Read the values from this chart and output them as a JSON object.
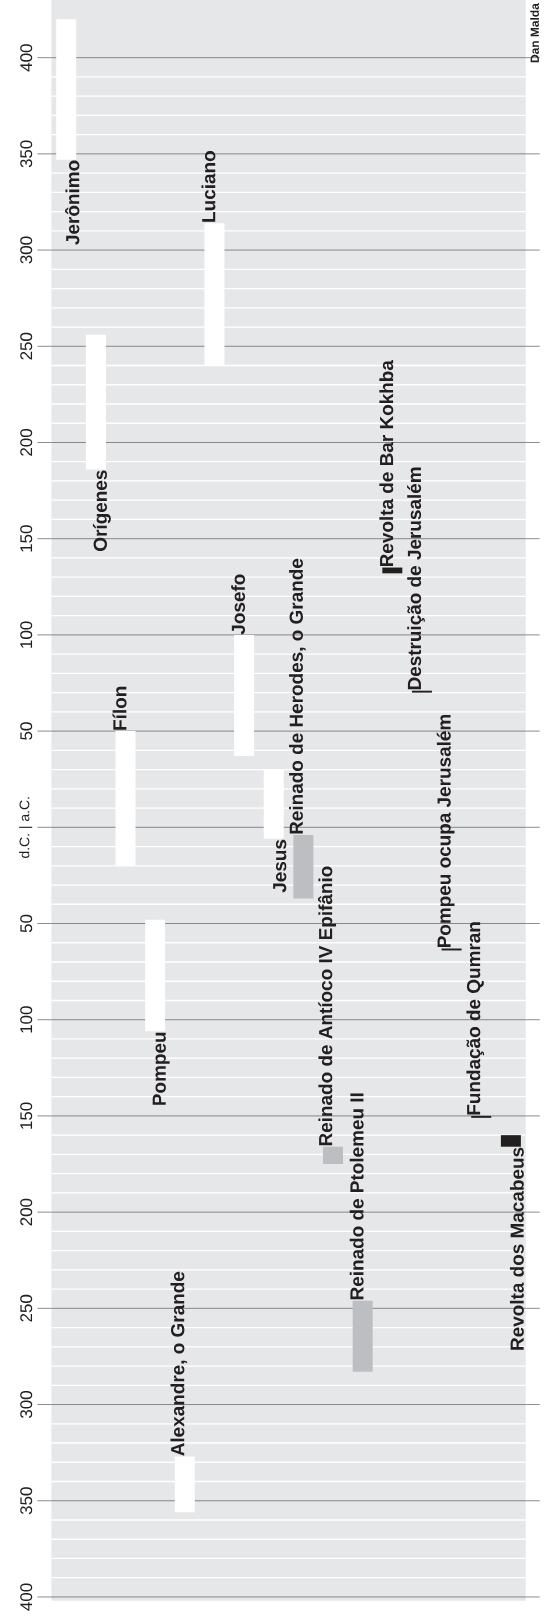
{
  "chart_data": {
    "type": "bar",
    "categories": [
      null,
      null,
      null,
      null,
      null,
      null,
      null,
      null,
      null,
      null,
      null,
      null,
      null,
      null,
      null,
      null
    ],
    "series": [
      {
        "name": "Jerônimo",
        "color": "#ffffff",
        "values": [
          73,
          null,
          null,
          null,
          null,
          null,
          null,
          null,
          null,
          null,
          null,
          null,
          null,
          null,
          null,
          null
        ],
        "base": [
          347,
          null,
          null,
          null,
          null,
          null,
          null,
          null,
          null,
          null,
          null,
          null,
          null,
          null,
          null,
          null
        ]
      },
      {
        "name": "Orígenes",
        "color": "#ffffff",
        "values": [
          null,
          70,
          null,
          null,
          null,
          null,
          null,
          null,
          null,
          null,
          null,
          null,
          null,
          null,
          null,
          null
        ],
        "base": [
          null,
          186,
          null,
          null,
          null,
          null,
          null,
          null,
          null,
          null,
          null,
          null,
          null,
          null,
          null,
          null
        ]
      },
      {
        "name": "Fílon",
        "color": "#ffffff",
        "values": [
          null,
          null,
          70,
          null,
          null,
          null,
          null,
          null,
          null,
          null,
          null,
          null,
          null,
          null,
          null,
          null
        ],
        "base": [
          null,
          null,
          -20,
          null,
          null,
          null,
          null,
          null,
          null,
          null,
          null,
          null,
          null,
          null,
          null,
          null
        ]
      },
      {
        "name": "Pompeu",
        "color": "#ffffff",
        "values": [
          null,
          null,
          null,
          58,
          null,
          null,
          null,
          null,
          null,
          null,
          null,
          null,
          null,
          null,
          null,
          null
        ],
        "base": [
          null,
          null,
          null,
          -106,
          null,
          null,
          null,
          null,
          null,
          null,
          null,
          null,
          null,
          null,
          null,
          null
        ]
      },
      {
        "name": "Alexandre, o Grande",
        "color": "#ffffff",
        "values": [
          null,
          null,
          null,
          null,
          29,
          null,
          null,
          null,
          null,
          null,
          null,
          null,
          null,
          null,
          null,
          null
        ],
        "base": [
          null,
          null,
          null,
          null,
          -356,
          null,
          null,
          null,
          null,
          null,
          null,
          null,
          null,
          null,
          null,
          null
        ]
      },
      {
        "name": "Luciano",
        "color": "#ffffff",
        "values": [
          null,
          null,
          null,
          null,
          null,
          74,
          null,
          null,
          null,
          null,
          null,
          null,
          null,
          null,
          null,
          null
        ],
        "base": [
          null,
          null,
          null,
          null,
          null,
          240,
          null,
          null,
          null,
          null,
          null,
          null,
          null,
          null,
          null,
          null
        ]
      },
      {
        "name": "Josefo",
        "color": "#ffffff",
        "values": [
          null,
          null,
          null,
          null,
          null,
          null,
          63,
          null,
          null,
          null,
          null,
          null,
          null,
          null,
          null,
          null
        ],
        "base": [
          null,
          null,
          null,
          null,
          null,
          null,
          37,
          null,
          null,
          null,
          null,
          null,
          null,
          null,
          null,
          null
        ]
      },
      {
        "name": "Jesus",
        "color": "#ffffff",
        "values": [
          null,
          null,
          null,
          null,
          null,
          null,
          null,
          36,
          null,
          null,
          null,
          null,
          null,
          null,
          null,
          null
        ],
        "base": [
          null,
          null,
          null,
          null,
          null,
          null,
          null,
          -6,
          null,
          null,
          null,
          null,
          null,
          null,
          null,
          null
        ]
      },
      {
        "name": "Reinado de Herodes, o Grande",
        "color": "#bcbec1",
        "values": [
          null,
          null,
          null,
          null,
          null,
          null,
          null,
          null,
          33,
          null,
          null,
          null,
          null,
          null,
          null,
          null
        ],
        "base": [
          null,
          null,
          null,
          null,
          null,
          null,
          null,
          null,
          -37,
          null,
          null,
          null,
          null,
          null,
          null,
          null
        ]
      },
      {
        "name": "Reinado de Antíoco IV Epifânio",
        "color": "#bcbec1",
        "values": [
          null,
          null,
          null,
          null,
          null,
          null,
          null,
          null,
          null,
          9,
          null,
          null,
          null,
          null,
          null,
          null
        ],
        "base": [
          null,
          null,
          null,
          null,
          null,
          null,
          null,
          null,
          null,
          -175,
          null,
          null,
          null,
          null,
          null,
          null
        ]
      },
      {
        "name": "Reinado de Ptolemeu II",
        "color": "#bcbec1",
        "values": [
          null,
          null,
          null,
          null,
          null,
          null,
          null,
          null,
          null,
          null,
          37,
          null,
          null,
          null,
          null,
          null
        ],
        "base": [
          null,
          null,
          null,
          null,
          null,
          null,
          null,
          null,
          null,
          null,
          -283,
          null,
          null,
          null,
          null,
          null
        ]
      },
      {
        "name": "Revolta de Bar Kokhba",
        "color": "#231f20",
        "values": [
          null,
          null,
          null,
          null,
          null,
          null,
          null,
          null,
          null,
          null,
          null,
          3,
          null,
          null,
          null,
          null
        ],
        "base": [
          null,
          null,
          null,
          null,
          null,
          null,
          null,
          null,
          null,
          null,
          null,
          132,
          null,
          null,
          null,
          null
        ]
      },
      {
        "name": "Destruição de Jerusalém",
        "color": "#231f20",
        "values": [
          null,
          null,
          null,
          null,
          null,
          null,
          null,
          null,
          null,
          null,
          null,
          null,
          1,
          null,
          null,
          null
        ],
        "base": [
          null,
          null,
          null,
          null,
          null,
          null,
          null,
          null,
          null,
          null,
          null,
          null,
          70,
          null,
          null,
          null
        ]
      },
      {
        "name": "Pompeu ocupa Jerusalém",
        "color": "#231f20",
        "values": [
          null,
          null,
          null,
          null,
          null,
          null,
          null,
          null,
          null,
          null,
          null,
          null,
          null,
          1,
          null,
          null
        ],
        "base": [
          null,
          null,
          null,
          null,
          null,
          null,
          null,
          null,
          null,
          null,
          null,
          null,
          null,
          -64,
          null,
          null
        ]
      },
      {
        "name": "Fundação de Qumran",
        "color": "#231f20",
        "values": [
          null,
          null,
          null,
          null,
          null,
          null,
          null,
          null,
          null,
          null,
          null,
          null,
          null,
          null,
          1,
          null
        ],
        "base": [
          null,
          null,
          null,
          null,
          null,
          null,
          null,
          null,
          null,
          null,
          null,
          null,
          null,
          null,
          -151,
          null
        ]
      },
      {
        "name": "Revolta dos Macabeus",
        "color": "#231f20",
        "values": [
          null,
          null,
          null,
          null,
          null,
          null,
          null,
          null,
          null,
          null,
          null,
          null,
          null,
          null,
          null,
          6
        ],
        "base": [
          null,
          null,
          null,
          null,
          null,
          null,
          null,
          null,
          null,
          null,
          null,
          null,
          null,
          null,
          null,
          -166
        ]
      }
    ],
    "ylim": [
      -402,
      430
    ],
    "yticks": [
      {
        "value": -400,
        "label": "400"
      },
      {
        "value": -350,
        "label": "350"
      },
      {
        "value": -300,
        "label": "300"
      },
      {
        "value": -250,
        "label": "250"
      },
      {
        "value": -200,
        "label": "200"
      },
      {
        "value": -150,
        "label": "150"
      },
      {
        "value": -100,
        "label": "100"
      },
      {
        "value": -50,
        "label": "50"
      },
      {
        "value": 0,
        "label": "d.C. | a.C."
      },
      50,
      100,
      150,
      200,
      250,
      300,
      350,
      400
    ],
    "grid": "y",
    "tick_labels": "y",
    "annotations": [
      "Dan Malda"
    ]
  }
}
